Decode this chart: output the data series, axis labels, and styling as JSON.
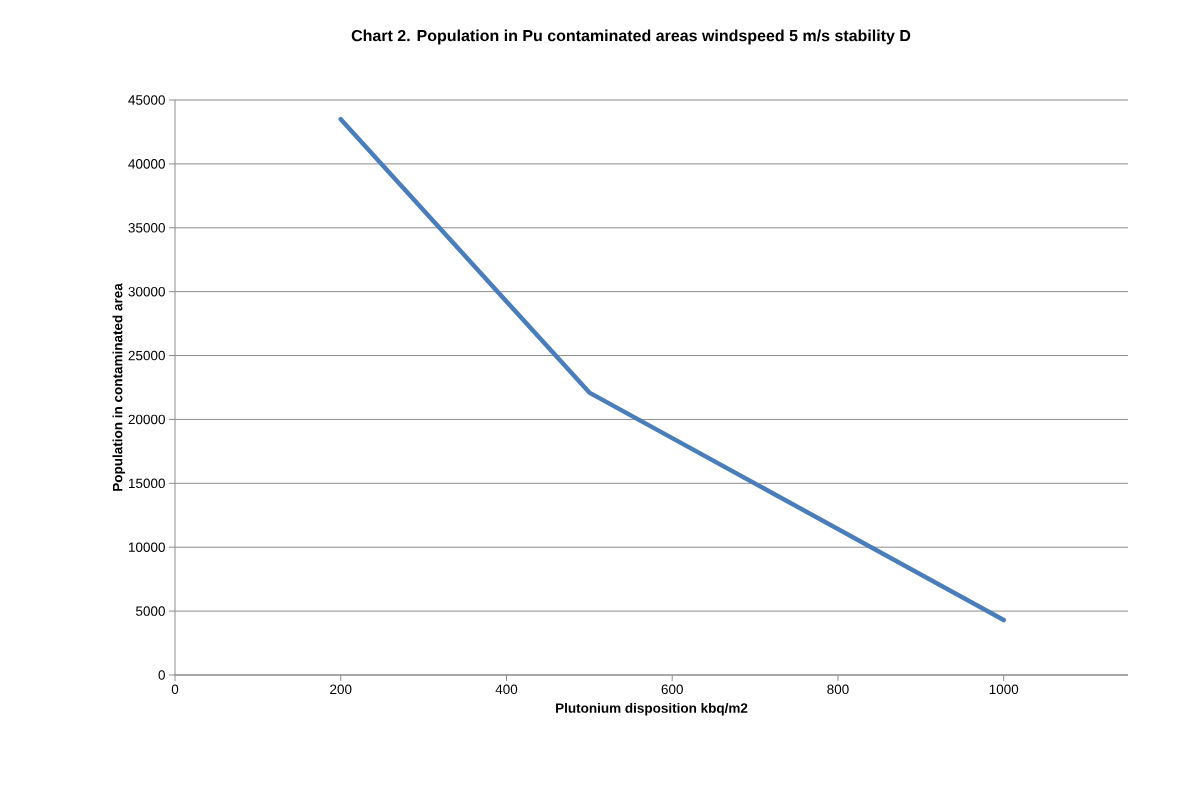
{
  "chart_data": {
    "type": "line",
    "title": "Chart 2. Population in Pu contaminated areas windspeed 5 m/s stability D",
    "xlabel": "Plutonium disposition kbq/m2",
    "ylabel": "Population in contaminated area",
    "x": [
      200,
      500,
      1000
    ],
    "series": [
      {
        "color": "#4a7ebb",
        "values": [
          43500,
          22100,
          4300
        ]
      }
    ],
    "xlim": [
      0,
      1150
    ],
    "xticks": [
      0,
      200,
      400,
      600,
      800,
      1000
    ],
    "ylim": [
      0,
      45000
    ],
    "yticks": [
      0,
      5000,
      10000,
      15000,
      20000,
      25000,
      30000,
      35000,
      40000,
      45000
    ],
    "grid": "y",
    "marker": "none",
    "line_style": "solid"
  }
}
